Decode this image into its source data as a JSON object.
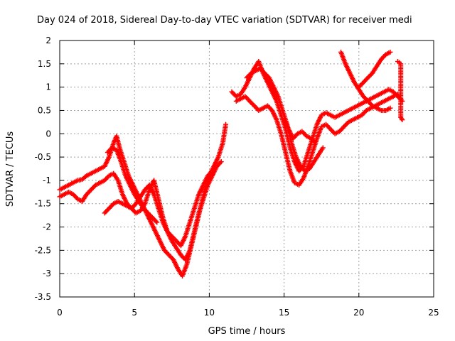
{
  "chart_data": {
    "type": "scatter",
    "title": "Day 024 of 2018, Sidereal Day-to-day VTEC variation (SDTVAR) for receiver medi",
    "xlabel": "GPS time / hours",
    "ylabel": "SDTVAR / TECUs",
    "xlim": [
      0,
      25
    ],
    "ylim": [
      -3.5,
      2
    ],
    "xticks": [
      0,
      5,
      10,
      15,
      20,
      25
    ],
    "yticks": [
      -3.5,
      -3,
      -2.5,
      -2,
      -1.5,
      -1,
      -0.5,
      0,
      0.5,
      1,
      1.5,
      2
    ],
    "xtick_labels": [
      "0",
      "5",
      "10",
      "15",
      "20",
      "25"
    ],
    "ytick_labels": [
      "-3.5",
      "-3",
      "-2.5",
      "-2",
      "-1.5",
      "-1",
      "-0.5",
      "0",
      "0.5",
      "1",
      "1.5",
      "2"
    ],
    "grid": true,
    "marker": "+",
    "color": "#ff0000",
    "series": [
      {
        "x": [
          0.0,
          0.3,
          0.6,
          0.9,
          1.2,
          1.5,
          1.8,
          2.1,
          2.4,
          2.7,
          3.0,
          3.3,
          3.6,
          3.8,
          4.0,
          4.3,
          4.6,
          4.9,
          5.2,
          5.5,
          5.8,
          6.1,
          6.4,
          6.7,
          7.0,
          7.3,
          7.6,
          7.9,
          8.2,
          8.5,
          8.8,
          9.1,
          9.4,
          9.7,
          10.0,
          10.3,
          10.6,
          10.9,
          11.1
        ],
        "y": [
          -1.2,
          -1.15,
          -1.1,
          -1.05,
          -1.0,
          -0.98,
          -0.9,
          -0.85,
          -0.8,
          -0.75,
          -0.7,
          -0.5,
          -0.2,
          -0.05,
          -0.3,
          -0.6,
          -0.9,
          -1.1,
          -1.3,
          -1.5,
          -1.7,
          -1.9,
          -2.1,
          -2.3,
          -2.5,
          -2.6,
          -2.7,
          -2.9,
          -3.05,
          -2.8,
          -2.4,
          -2.0,
          -1.6,
          -1.2,
          -0.9,
          -0.7,
          -0.5,
          -0.2,
          0.2
        ]
      },
      {
        "x": [
          0.0,
          0.3,
          0.6,
          0.9,
          1.2,
          1.5,
          1.8,
          2.1,
          2.4,
          2.7,
          3.0,
          3.3,
          3.6,
          3.9,
          4.2,
          4.5,
          4.8,
          5.1,
          5.4,
          5.7,
          6.0,
          6.3,
          6.6,
          6.9,
          7.2,
          7.5,
          7.8,
          8.1,
          8.4,
          8.7,
          9.0,
          9.3,
          9.6,
          9.9,
          10.2,
          10.5,
          10.8
        ],
        "y": [
          -1.35,
          -1.3,
          -1.25,
          -1.3,
          -1.4,
          -1.45,
          -1.3,
          -1.2,
          -1.1,
          -1.05,
          -1.0,
          -0.9,
          -0.85,
          -1.0,
          -1.3,
          -1.5,
          -1.6,
          -1.7,
          -1.65,
          -1.5,
          -1.2,
          -1.0,
          -1.4,
          -1.8,
          -2.1,
          -2.3,
          -2.45,
          -2.6,
          -2.7,
          -2.5,
          -2.1,
          -1.7,
          -1.4,
          -1.1,
          -0.9,
          -0.7,
          -0.6
        ]
      },
      {
        "x": [
          3.0,
          3.3,
          3.6,
          3.9,
          4.2,
          4.5,
          4.8,
          5.1,
          5.4,
          5.7,
          6.0,
          6.3,
          6.6,
          6.9,
          7.2,
          7.5,
          7.8,
          8.1,
          8.4,
          8.7,
          9.0,
          9.3,
          9.6,
          9.9,
          10.2
        ],
        "y": [
          -1.7,
          -1.6,
          -1.5,
          -1.45,
          -1.5,
          -1.55,
          -1.6,
          -1.5,
          -1.35,
          -1.2,
          -1.1,
          -1.3,
          -1.6,
          -1.9,
          -2.1,
          -2.2,
          -2.3,
          -2.4,
          -2.2,
          -1.9,
          -1.6,
          -1.3,
          -1.1,
          -0.9,
          -0.8
        ]
      },
      {
        "x": [
          3.2,
          3.5,
          3.8,
          4.1,
          4.4,
          4.7,
          5.0,
          5.3,
          5.6,
          5.9,
          6.2,
          6.5
        ],
        "y": [
          -0.4,
          -0.3,
          -0.35,
          -0.6,
          -0.9,
          -1.1,
          -1.3,
          -1.45,
          -1.6,
          -1.7,
          -1.8,
          -1.9
        ]
      },
      {
        "x": [
          11.5,
          11.8,
          12.1,
          12.4,
          12.7,
          13.0,
          13.3,
          13.6,
          13.9,
          14.2,
          14.5,
          14.8,
          15.1,
          15.4,
          15.7,
          16.0,
          16.3,
          16.6,
          16.9,
          17.2,
          17.5,
          17.8,
          18.1,
          18.4,
          18.7,
          19.0,
          19.3,
          19.6,
          19.9,
          20.2,
          20.5,
          20.8,
          21.1,
          21.4,
          21.7,
          22.0,
          22.3,
          22.6,
          22.9
        ],
        "y": [
          0.9,
          0.8,
          0.85,
          1.0,
          1.2,
          1.4,
          1.55,
          1.3,
          1.1,
          0.9,
          0.7,
          0.4,
          0.1,
          -0.3,
          -0.6,
          -0.8,
          -0.7,
          -0.4,
          -0.1,
          0.2,
          0.4,
          0.45,
          0.4,
          0.35,
          0.4,
          0.45,
          0.5,
          0.55,
          0.6,
          0.65,
          0.7,
          0.75,
          0.8,
          0.85,
          0.9,
          0.95,
          0.9,
          0.8,
          0.7
        ]
      },
      {
        "x": [
          11.8,
          12.1,
          12.4,
          12.7,
          13.0,
          13.3,
          13.6,
          13.9,
          14.2,
          14.5,
          14.8,
          15.1,
          15.4,
          15.7,
          16.0,
          16.3,
          16.6,
          16.9,
          17.2,
          17.5,
          17.8,
          18.1,
          18.4,
          18.7,
          19.0,
          19.3,
          19.6,
          19.9,
          20.2,
          20.5,
          20.8,
          21.1,
          21.4,
          21.7,
          22.0,
          22.3,
          22.6
        ],
        "y": [
          0.7,
          0.75,
          0.8,
          0.7,
          0.6,
          0.5,
          0.55,
          0.6,
          0.5,
          0.3,
          0.0,
          -0.4,
          -0.8,
          -1.05,
          -1.1,
          -0.95,
          -0.7,
          -0.4,
          -0.1,
          0.15,
          0.2,
          0.1,
          0.0,
          0.05,
          0.15,
          0.25,
          0.3,
          0.35,
          0.4,
          0.5,
          0.55,
          0.6,
          0.65,
          0.7,
          0.75,
          0.8,
          0.85
        ]
      },
      {
        "x": [
          12.5,
          12.8,
          13.1,
          13.4,
          13.7,
          14.0,
          14.3,
          14.6,
          14.9,
          15.2,
          15.5,
          15.8,
          16.1,
          16.4,
          16.7,
          17.0,
          17.3,
          17.6
        ],
        "y": [
          1.2,
          1.3,
          1.35,
          1.4,
          1.3,
          1.2,
          1.0,
          0.8,
          0.5,
          0.2,
          -0.2,
          -0.5,
          -0.7,
          -0.8,
          -0.75,
          -0.6,
          -0.45,
          -0.3
        ]
      },
      {
        "x": [
          15.0,
          15.3,
          15.6,
          15.9,
          16.2,
          16.5,
          16.8,
          17.1
        ],
        "y": [
          0.3,
          0.1,
          -0.1,
          0.0,
          0.05,
          -0.05,
          -0.1,
          -0.2
        ]
      },
      {
        "x": [
          18.8,
          19.1,
          19.4,
          19.7,
          20.0,
          20.3,
          20.6,
          20.9,
          21.2,
          21.5,
          21.8,
          22.1
        ],
        "y": [
          1.75,
          1.5,
          1.3,
          1.1,
          0.95,
          0.8,
          0.7,
          0.6,
          0.55,
          0.5,
          0.5,
          0.55
        ]
      },
      {
        "x": [
          20.0,
          20.3,
          20.6,
          20.9,
          21.2,
          21.5,
          21.8,
          22.1
        ],
        "y": [
          1.0,
          1.1,
          1.2,
          1.3,
          1.45,
          1.6,
          1.7,
          1.75
        ]
      },
      {
        "x": [
          22.6,
          22.8,
          22.8,
          22.9
        ],
        "y": [
          1.55,
          1.5,
          0.35,
          0.3
        ]
      }
    ]
  }
}
